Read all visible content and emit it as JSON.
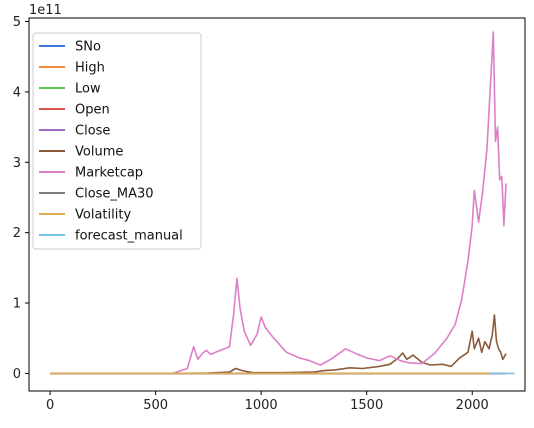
{
  "chart_data": {
    "type": "line",
    "offset_text": "1e11",
    "xlim": [
      -100,
      2250
    ],
    "ylim": [
      -25000000000.0,
      505000000000.0
    ],
    "x_ticks": [
      0,
      500,
      1000,
      1500,
      2000
    ],
    "x_tick_labels": [
      "0",
      "500",
      "1000",
      "1500",
      "2000"
    ],
    "y_ticks": [
      0,
      100000000000.0,
      200000000000.0,
      300000000000.0,
      400000000000.0,
      500000000000.0
    ],
    "y_tick_labels": [
      "0",
      "1",
      "2",
      "3",
      "4",
      "5"
    ],
    "grid": false,
    "legend_position": "top-left",
    "series": [
      {
        "name": "SNo",
        "color": "#3a78d6",
        "points": [
          [
            0,
            0
          ],
          [
            2160,
            0
          ]
        ]
      },
      {
        "name": "High",
        "color": "#ee8a3a",
        "points": [
          [
            0,
            0
          ],
          [
            2160,
            0
          ]
        ]
      },
      {
        "name": "Low",
        "color": "#55c94a",
        "points": [
          [
            0,
            0
          ],
          [
            2160,
            0
          ]
        ]
      },
      {
        "name": "Open",
        "color": "#d8514c",
        "points": [
          [
            0,
            0
          ],
          [
            2160,
            0
          ]
        ]
      },
      {
        "name": "Close",
        "color": "#9b6bc1",
        "points": [
          [
            0,
            0
          ],
          [
            2160,
            0
          ]
        ]
      },
      {
        "name": "Volume",
        "color": "#8c5a3a",
        "points": [
          [
            0,
            0
          ],
          [
            600,
            0
          ],
          [
            750,
            500000000.0
          ],
          [
            850,
            2000000000.0
          ],
          [
            880,
            7000000000.0
          ],
          [
            910,
            4000000000.0
          ],
          [
            960,
            1000000000.0
          ],
          [
            1100,
            1000000000.0
          ],
          [
            1250,
            2000000000.0
          ],
          [
            1300,
            4000000000.0
          ],
          [
            1350,
            5000000000.0
          ],
          [
            1420,
            8000000000.0
          ],
          [
            1480,
            7000000000.0
          ],
          [
            1560,
            10000000000.0
          ],
          [
            1610,
            13000000000.0
          ],
          [
            1650,
            22000000000.0
          ],
          [
            1670,
            29000000000.0
          ],
          [
            1690,
            20000000000.0
          ],
          [
            1720,
            26000000000.0
          ],
          [
            1760,
            16000000000.0
          ],
          [
            1800,
            12000000000.0
          ],
          [
            1860,
            13000000000.0
          ],
          [
            1900,
            10000000000.0
          ],
          [
            1940,
            22000000000.0
          ],
          [
            1980,
            30000000000.0
          ],
          [
            2000,
            60000000000.0
          ],
          [
            2010,
            35000000000.0
          ],
          [
            2030,
            50000000000.0
          ],
          [
            2045,
            30000000000.0
          ],
          [
            2060,
            45000000000.0
          ],
          [
            2080,
            35000000000.0
          ],
          [
            2095,
            55000000000.0
          ],
          [
            2105,
            83000000000.0
          ],
          [
            2115,
            45000000000.0
          ],
          [
            2125,
            35000000000.0
          ],
          [
            2135,
            30000000000.0
          ],
          [
            2145,
            20000000000.0
          ],
          [
            2160,
            28000000000.0
          ]
        ]
      },
      {
        "name": "Marketcap",
        "color": "#dd7fc7",
        "points": [
          [
            0,
            0
          ],
          [
            580,
            0
          ],
          [
            600,
            2000000000.0
          ],
          [
            650,
            7000000000.0
          ],
          [
            680,
            38000000000.0
          ],
          [
            700,
            20000000000.0
          ],
          [
            720,
            28000000000.0
          ],
          [
            740,
            33000000000.0
          ],
          [
            760,
            27000000000.0
          ],
          [
            800,
            32000000000.0
          ],
          [
            850,
            38000000000.0
          ],
          [
            870,
            85000000000.0
          ],
          [
            885,
            135000000000.0
          ],
          [
            900,
            92000000000.0
          ],
          [
            920,
            60000000000.0
          ],
          [
            950,
            40000000000.0
          ],
          [
            980,
            55000000000.0
          ],
          [
            1000,
            80000000000.0
          ],
          [
            1020,
            65000000000.0
          ],
          [
            1060,
            50000000000.0
          ],
          [
            1120,
            30000000000.0
          ],
          [
            1180,
            22000000000.0
          ],
          [
            1230,
            18000000000.0
          ],
          [
            1280,
            12000000000.0
          ],
          [
            1330,
            20000000000.0
          ],
          [
            1400,
            35000000000.0
          ],
          [
            1450,
            28000000000.0
          ],
          [
            1500,
            22000000000.0
          ],
          [
            1560,
            18000000000.0
          ],
          [
            1610,
            25000000000.0
          ],
          [
            1660,
            18000000000.0
          ],
          [
            1700,
            15000000000.0
          ],
          [
            1760,
            14000000000.0
          ],
          [
            1820,
            28000000000.0
          ],
          [
            1880,
            50000000000.0
          ],
          [
            1920,
            70000000000.0
          ],
          [
            1950,
            105000000000.0
          ],
          [
            1980,
            160000000000.0
          ],
          [
            2000,
            210000000000.0
          ],
          [
            2010,
            260000000000.0
          ],
          [
            2030,
            215000000000.0
          ],
          [
            2050,
            260000000000.0
          ],
          [
            2070,
            320000000000.0
          ],
          [
            2090,
            430000000000.0
          ],
          [
            2100,
            485000000000.0
          ],
          [
            2110,
            330000000000.0
          ],
          [
            2120,
            350000000000.0
          ],
          [
            2130,
            275000000000.0
          ],
          [
            2140,
            280000000000.0
          ],
          [
            2150,
            210000000000.0
          ],
          [
            2160,
            270000000000.0
          ]
        ]
      },
      {
        "name": "Close_MA30",
        "color": "#7a7a7a",
        "points": [
          [
            0,
            0
          ],
          [
            2160,
            0
          ]
        ]
      },
      {
        "name": "Volatility",
        "color": "#dfad55",
        "points": [
          [
            0,
            0
          ],
          [
            2160,
            0
          ]
        ]
      },
      {
        "name": "forecast_manual",
        "color": "#74c2e8",
        "points": [
          [
            2080,
            0
          ],
          [
            2200,
            0
          ]
        ]
      }
    ]
  }
}
